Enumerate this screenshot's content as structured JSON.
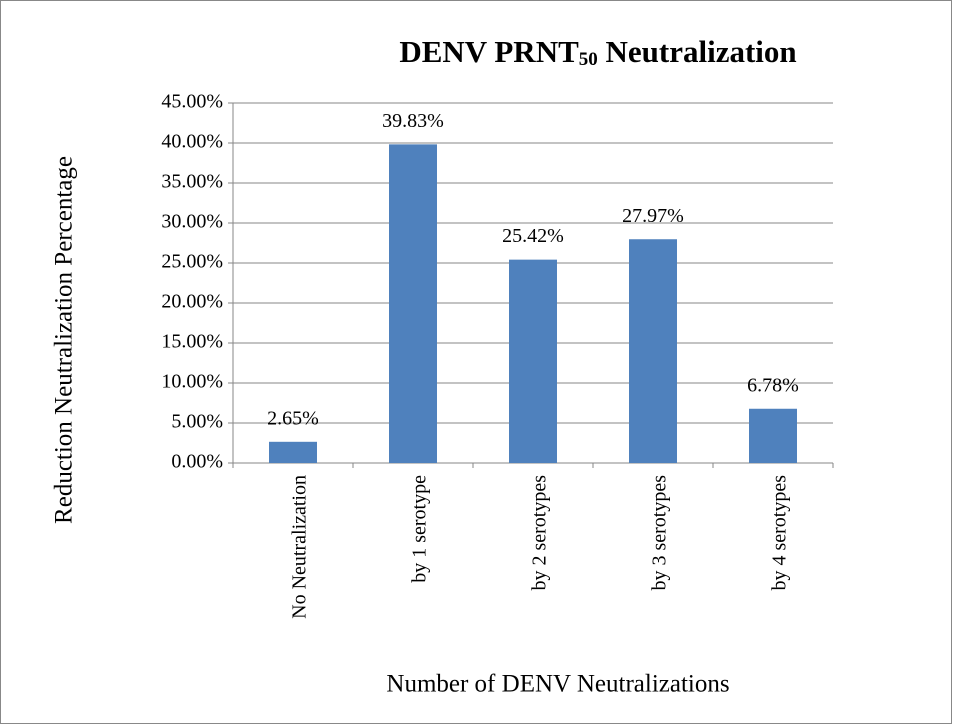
{
  "chart_data": {
    "type": "bar",
    "title": "DENV PRNT50 Neutralization",
    "x_label": "Number of DENV Neutralizations",
    "y_label": "Reduction Neutralization Percentage",
    "categories": [
      "No Neutralization",
      "by 1 serotype",
      "by 2 serotypes",
      "by 3 serotypes",
      "by 4 serotypes"
    ],
    "values": [
      2.65,
      39.83,
      25.42,
      27.97,
      6.78
    ],
    "value_labels": [
      "2.65%",
      "39.83%",
      "25.42%",
      "27.97%",
      "6.78%"
    ],
    "color": "#4f81bd",
    "ylim": [
      0,
      45
    ],
    "yticks": [
      {
        "value": 0,
        "label": "0.00%"
      },
      {
        "value": 5,
        "label": "5.00%"
      },
      {
        "value": 10,
        "label": "10.00%"
      },
      {
        "value": 15,
        "label": "15.00%"
      },
      {
        "value": 20,
        "label": "20.00%"
      },
      {
        "value": 25,
        "label": "25.00%"
      },
      {
        "value": 30,
        "label": "30.00%"
      },
      {
        "value": 35,
        "label": "35.00%"
      },
      {
        "value": 40,
        "label": "40.00%"
      },
      {
        "value": 45,
        "label": "45.00%"
      }
    ],
    "grid": true
  }
}
